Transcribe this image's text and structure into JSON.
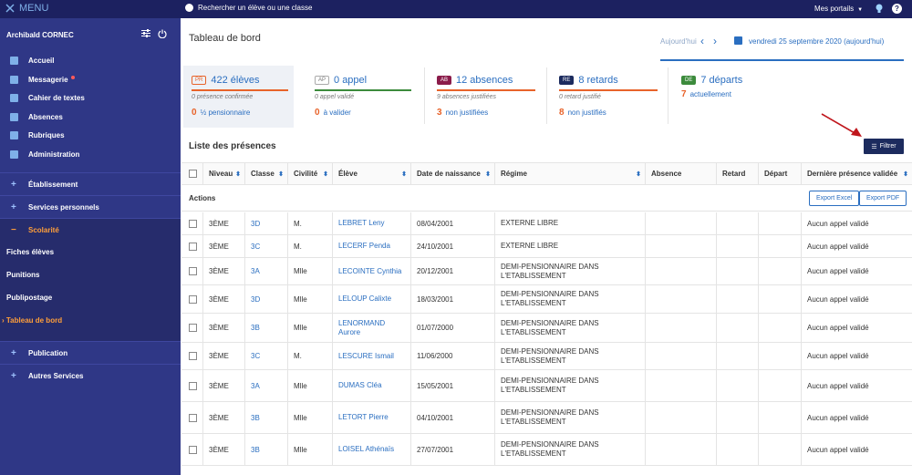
{
  "topbar": {
    "menu_label": "MENU",
    "search_placeholder": "Rechercher un élève ou une classe",
    "portals_label": "Mes portails"
  },
  "sidebar": {
    "user_name": "Archibald CORNEC",
    "items": [
      {
        "label": "Accueil",
        "icon": "grid-icon"
      },
      {
        "label": "Messagerie",
        "icon": "mail-icon"
      },
      {
        "label": "Cahier de textes",
        "icon": "notebook-icon"
      },
      {
        "label": "Absences",
        "icon": "person-icon"
      },
      {
        "label": "Rubriques",
        "icon": "rubric-icon"
      },
      {
        "label": "Administration",
        "icon": "gear-icon"
      }
    ],
    "sections": [
      {
        "label": "Établissement",
        "toggle": "+"
      },
      {
        "label": "Services personnels",
        "toggle": "+"
      },
      {
        "label": "Scolarité",
        "toggle": "−"
      },
      {
        "label": "Publication",
        "toggle": "+"
      },
      {
        "label": "Autres Services",
        "toggle": "+"
      }
    ],
    "sub_items": [
      "Fiches élèves",
      "Punitions",
      "Publipostage",
      "Tableau de bord"
    ]
  },
  "main": {
    "title": "Tableau de bord",
    "today_label": "Aujourd'hui",
    "date_label": "vendredi 25 septembre 2020 (aujourd'hui)"
  },
  "stats": [
    {
      "badge": "PR",
      "title": "422 élèves",
      "line1": "0 présence confirmée",
      "count": "0",
      "line2": "½ pensionnaire",
      "color": "#e8632a"
    },
    {
      "badge": "AP",
      "title": "0 appel",
      "line1": "0 appel validé",
      "count": "0",
      "line2": "à valider",
      "color": "#3c8b3c"
    },
    {
      "badge": "AB",
      "title": "12 absences",
      "line1": "9 absences justifiées",
      "count": "3",
      "line2": "non justifiées",
      "color": "#e8632a"
    },
    {
      "badge": "RE",
      "title": "8 retards",
      "line1": "0 retard justifié",
      "count": "8",
      "line2": "non justifiés",
      "color": "#e8632a"
    },
    {
      "badge": "DE",
      "title": "7 départs",
      "line1": "",
      "count": "7",
      "line2": "actuellement",
      "color": "#3c8b3c"
    }
  ],
  "list": {
    "title": "Liste des présences",
    "filter_label": "Filtrer",
    "actions_label": "Actions",
    "export_excel": "Export Excel",
    "export_pdf": "Export PDF",
    "columns": [
      "Niveau",
      "Classe",
      "Civilité",
      "Élève",
      "Date de naissance",
      "Régime",
      "Absence",
      "Retard",
      "Départ",
      "Dernière présence validée"
    ],
    "rows": [
      {
        "niveau": "3ÈME",
        "classe": "3D",
        "civ": "M.",
        "eleve": "LEBRET Leny",
        "naissance": "08/04/2001",
        "regime": "EXTERNE LIBRE",
        "derniere": "Aucun appel validé"
      },
      {
        "niveau": "3ÈME",
        "classe": "3C",
        "civ": "M.",
        "eleve": "LECERF Penda",
        "naissance": "24/10/2001",
        "regime": "EXTERNE LIBRE",
        "derniere": "Aucun appel validé"
      },
      {
        "niveau": "3ÈME",
        "classe": "3A",
        "civ": "Mlle",
        "eleve": "LECOINTE Cynthia",
        "naissance": "20/12/2001",
        "regime": "DEMI-PENSIONNAIRE DANS L'ETABLISSEMENT",
        "derniere": "Aucun appel validé"
      },
      {
        "niveau": "3ÈME",
        "classe": "3D",
        "civ": "Mlle",
        "eleve": "LELOUP Calixte",
        "naissance": "18/03/2001",
        "regime": "DEMI-PENSIONNAIRE DANS L'ETABLISSEMENT",
        "derniere": "Aucun appel validé"
      },
      {
        "niveau": "3ÈME",
        "classe": "3B",
        "civ": "Mlle",
        "eleve": "LENORMAND Aurore",
        "naissance": "01/07/2000",
        "regime": "DEMI-PENSIONNAIRE DANS L'ETABLISSEMENT",
        "derniere": "Aucun appel validé"
      },
      {
        "niveau": "3ÈME",
        "classe": "3C",
        "civ": "M.",
        "eleve": "LESCURE Ismail",
        "naissance": "11/06/2000",
        "regime": "DEMI-PENSIONNAIRE DANS L'ETABLISSEMENT",
        "derniere": "Aucun appel validé"
      },
      {
        "niveau": "3ÈME",
        "classe": "3A",
        "civ": "Mlle",
        "eleve": "DUMAS Cléa",
        "naissance": "15/05/2001",
        "regime": "DEMI-PENSIONNAIRE DANS L'ETABLISSEMENT",
        "derniere": "Aucun appel validé"
      },
      {
        "niveau": "3ÈME",
        "classe": "3B",
        "civ": "Mlle",
        "eleve": "LETORT Pierre",
        "naissance": "04/10/2001",
        "regime": "DEMI-PENSIONNAIRE DANS L'ETABLISSEMENT",
        "derniere": "Aucun appel validé"
      },
      {
        "niveau": "3ÈME",
        "classe": "3B",
        "civ": "Mlle",
        "eleve": "LOISEL Athénaïs",
        "naissance": "27/07/2001",
        "regime": "DEMI-PENSIONNAIRE DANS L'ETABLISSEMENT",
        "derniere": "Aucun appel validé"
      }
    ]
  },
  "colors": {
    "topbar": "#1c2160",
    "sidebar": "#2f3786",
    "accent": "#2a6ec0",
    "warning": "#e8632a",
    "active": "#ff9f3a"
  }
}
